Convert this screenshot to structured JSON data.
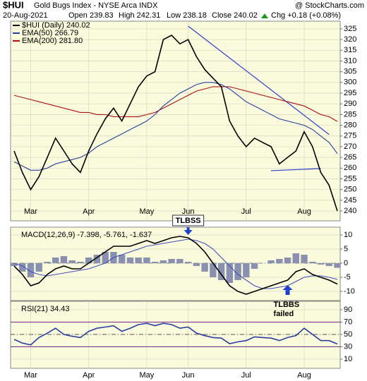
{
  "header": {
    "symbol": "$HUI",
    "name": "Gold Bugs Index - NYSE Arca INDX",
    "source": "@ StockCharts.com",
    "date": "20-Aug-2021",
    "open": "Open 239.83",
    "high": "High 242.31",
    "low": "Low 238.18",
    "close": "Close 240.02",
    "change": "Chg +0.18 (+0.08%)"
  },
  "chart_data": [
    {
      "type": "line",
      "categories": [
        null,
        null,
        "Mar",
        null,
        null,
        null,
        null,
        null,
        null,
        "Apr",
        null,
        null,
        null,
        null,
        null,
        null,
        "May",
        null,
        null,
        null,
        null,
        "Jun",
        null,
        null,
        null,
        null,
        null,
        null,
        "Jul",
        null,
        null,
        null,
        null,
        null,
        null,
        "Aug",
        null,
        null,
        null,
        null
      ],
      "series": [
        {
          "name": "$HUI (Daily) 240.02",
          "color": "#000000",
          "values": [
            268,
            258,
            250,
            256,
            265,
            274,
            268,
            262,
            258,
            268,
            276,
            283,
            288,
            282,
            290,
            298,
            303,
            305,
            320,
            322,
            318,
            320,
            312,
            306,
            302,
            298,
            282,
            275,
            270,
            274,
            272,
            270,
            262,
            265,
            268,
            277,
            270,
            258,
            252,
            240.02
          ]
        },
        {
          "name": "EMA(50) 266.79",
          "color": "#2b3ea0",
          "values": [
            263,
            261,
            259,
            259,
            260,
            262,
            263,
            264,
            265,
            267,
            270,
            272,
            274,
            276,
            278,
            280,
            282,
            285,
            289,
            292,
            295,
            297,
            299,
            300,
            300,
            299,
            297,
            294,
            291,
            289,
            287,
            285,
            283,
            282,
            281,
            280,
            278,
            275,
            272,
            266.79
          ]
        },
        {
          "name": "EMA(200) 281.80",
          "color": "#b01010",
          "values": [
            294,
            293,
            292,
            291,
            290,
            289,
            288,
            287,
            286,
            286,
            285,
            285,
            284,
            284,
            284,
            284,
            285,
            286,
            288,
            290,
            292,
            294,
            296,
            297,
            298,
            298,
            298,
            297,
            296,
            295,
            294,
            293,
            292,
            291,
            290,
            289,
            287,
            285,
            284,
            281.8
          ]
        }
      ],
      "trendlines": [
        {
          "color": "#3040d0",
          "x": [
            21,
            38
          ],
          "values": [
            326.3,
            275.7
          ]
        },
        {
          "color": "#3040d0",
          "x": [
            31,
            37
          ],
          "values": [
            258.8,
            259.8
          ]
        }
      ],
      "ylim": [
        235.4,
        328.6
      ],
      "yticks": [
        240,
        245,
        250,
        255,
        260,
        265,
        270,
        275,
        280,
        285,
        290,
        295,
        300,
        305,
        310,
        315,
        320,
        325
      ],
      "grid": true
    },
    {
      "type": "macd",
      "legend": "MACD(12,26,9) -7.398, -5.761, -1.637",
      "series": [
        {
          "color": "#000000",
          "values": [
            -1,
            -4,
            -8,
            -7,
            -4,
            -2,
            -1,
            -2,
            -2,
            0,
            2,
            4,
            6,
            6,
            6,
            7,
            8,
            7,
            8,
            9,
            9.5,
            9,
            7,
            4,
            0,
            -4,
            -8,
            -10,
            -11,
            -10,
            -9,
            -8,
            -7,
            -6,
            -3,
            -2,
            -4,
            -5,
            -6,
            -7.398
          ]
        },
        {
          "color": "#4050c0",
          "values": [
            0,
            -1,
            -3,
            -4,
            -4.5,
            -4,
            -3.5,
            -3,
            -2.5,
            -2,
            -1,
            0,
            2,
            3,
            4,
            5,
            6,
            6.5,
            7,
            7.5,
            8,
            8.5,
            8,
            7,
            5,
            2,
            -1,
            -4,
            -6,
            -8,
            -9,
            -9,
            -8.5,
            -8,
            -6.5,
            -5,
            -4.5,
            -4.5,
            -5,
            -5.761
          ]
        }
      ],
      "histogram": {
        "color": "#8a90b0",
        "values": [
          -1,
          -3,
          -5,
          -3,
          0.5,
          2,
          2.5,
          1,
          0.5,
          2,
          3,
          4,
          4,
          3,
          2,
          2,
          2,
          0.5,
          1,
          1.5,
          1.5,
          0.5,
          -1,
          -3,
          -5,
          -6,
          -7,
          -6,
          -5,
          -2,
          0,
          1,
          1.5,
          2,
          3.5,
          3,
          0.5,
          -0.5,
          -1,
          -1.637
        ]
      },
      "annotations": [
        {
          "text": "TLBSS",
          "index": 21,
          "direction": "down"
        },
        {
          "lines": [
            "TLBBS",
            "failed"
          ],
          "index": 33,
          "direction": "up"
        }
      ],
      "ylim": [
        -13.25,
        12.75
      ],
      "yticks": [
        -10,
        -5,
        0,
        5,
        10
      ],
      "grid": true
    },
    {
      "type": "rsi",
      "legend": "RSI(21) 34.43",
      "categories": [
        null,
        null,
        "Mar",
        null,
        null,
        null,
        null,
        null,
        null,
        "Apr",
        null,
        null,
        null,
        null,
        null,
        null,
        "May",
        null,
        null,
        null,
        null,
        "Jun",
        null,
        null,
        null,
        null,
        null,
        null,
        "Jul",
        null,
        null,
        null,
        null,
        null,
        null,
        "Aug",
        null,
        null,
        null,
        null
      ],
      "series": [
        {
          "color": "#2b3ea0",
          "values": [
            42,
            36,
            33,
            45,
            52,
            60,
            50,
            47,
            45,
            55,
            60,
            62,
            64,
            55,
            60,
            66,
            68,
            64,
            68,
            66,
            60,
            62,
            52,
            48,
            45,
            44,
            35,
            38,
            40,
            46,
            45,
            44,
            40,
            45,
            48,
            60,
            50,
            40,
            40,
            34.43
          ]
        }
      ],
      "reference_lines": [
        70,
        50,
        30
      ],
      "ylim": [
        -4.86,
        103.7
      ],
      "yticks": [
        10,
        30,
        50,
        70,
        90
      ],
      "grid": true
    }
  ]
}
